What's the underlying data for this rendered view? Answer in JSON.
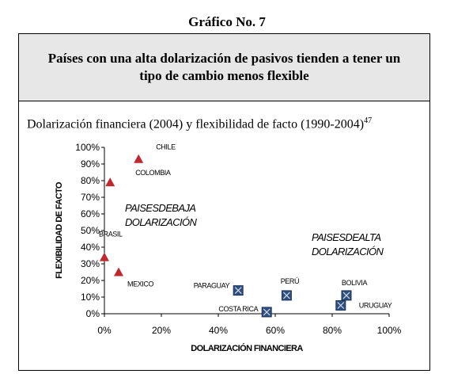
{
  "figure_label": "Gráfico No. 7",
  "header": "Países con una alta dolarización de pasivos tienden a tener un tipo de cambio menos flexible",
  "subtitle": "Dolarización financiera (2004) y flexibilidad de facto (1990-2004)",
  "footnote_ref": "47",
  "chart_data": {
    "type": "scatter",
    "xlabel": "DOLARIZACIÓN FINANCIERA",
    "ylabel": "FLEXIBILIDAD DE FACTO",
    "xlim": [
      0,
      100
    ],
    "ylim": [
      0,
      100
    ],
    "x_ticks": [
      "0%",
      "20%",
      "40%",
      "60%",
      "80%",
      "100%"
    ],
    "y_ticks": [
      "0%",
      "10%",
      "20%",
      "30%",
      "40%",
      "50%",
      "60%",
      "70%",
      "80%",
      "90%",
      "100%"
    ],
    "grid": false,
    "group_labels": [
      {
        "line1": "PAISESDEBAJA",
        "line2": "DOLARIZACIÓN"
      },
      {
        "line1": "PAISESDEALTA",
        "line2": "DOLARIZACIÓN"
      }
    ],
    "series": [
      {
        "marker": "triangle",
        "color": "#c0282d",
        "points": [
          {
            "label": "CHILE",
            "x": 12,
            "y": 93
          },
          {
            "label": "COLOMBIA",
            "x": 2,
            "y": 79
          },
          {
            "label": "BRASIL",
            "x": 0,
            "y": 34
          },
          {
            "label": "MEXICO",
            "x": 5,
            "y": 25
          }
        ]
      },
      {
        "marker": "square-x",
        "color": "#2f4f7f",
        "points": [
          {
            "label": "PARAGUAY",
            "x": 47,
            "y": 14
          },
          {
            "label": "PERÚ",
            "x": 64,
            "y": 11
          },
          {
            "label": "BOLIVIA",
            "x": 85,
            "y": 11
          },
          {
            "label": "COSTA RICA",
            "x": 57,
            "y": 1
          },
          {
            "label": "URUGUAY",
            "x": 83,
            "y": 5
          }
        ]
      }
    ]
  }
}
